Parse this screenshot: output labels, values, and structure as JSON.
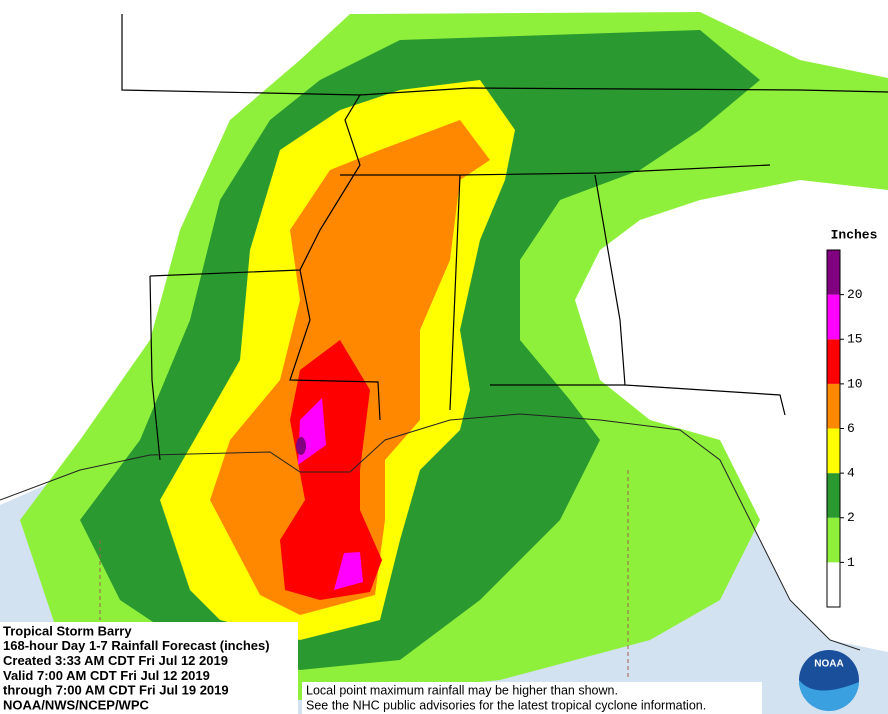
{
  "legend": {
    "title": "Inches",
    "colors": [
      "#ffffff",
      "#8ff03c",
      "#2a9a30",
      "#ffff00",
      "#ff8800",
      "#ff0000",
      "#ff00ff",
      "#800080"
    ],
    "ticks": [
      1,
      2,
      4,
      6,
      10,
      15,
      20
    ]
  },
  "caption": {
    "lines": [
      "Tropical Storm Barry",
      "168-hour Day 1-7 Rainfall Forecast (inches)",
      "Created 3:33 AM CDT Fri Jul 12 2019",
      "Valid 7:00 AM CDT Fri Jul 12 2019",
      "through 7:00 AM CDT Fri Jul 19 2019",
      "NOAA/NWS/NCEP/WPC"
    ]
  },
  "note": {
    "lines": [
      "Local point maximum rainfall may be higher than shown.",
      "See the NHC public advisories for the latest tropical cyclone information."
    ]
  },
  "logo": {
    "text": "NOAA"
  }
}
